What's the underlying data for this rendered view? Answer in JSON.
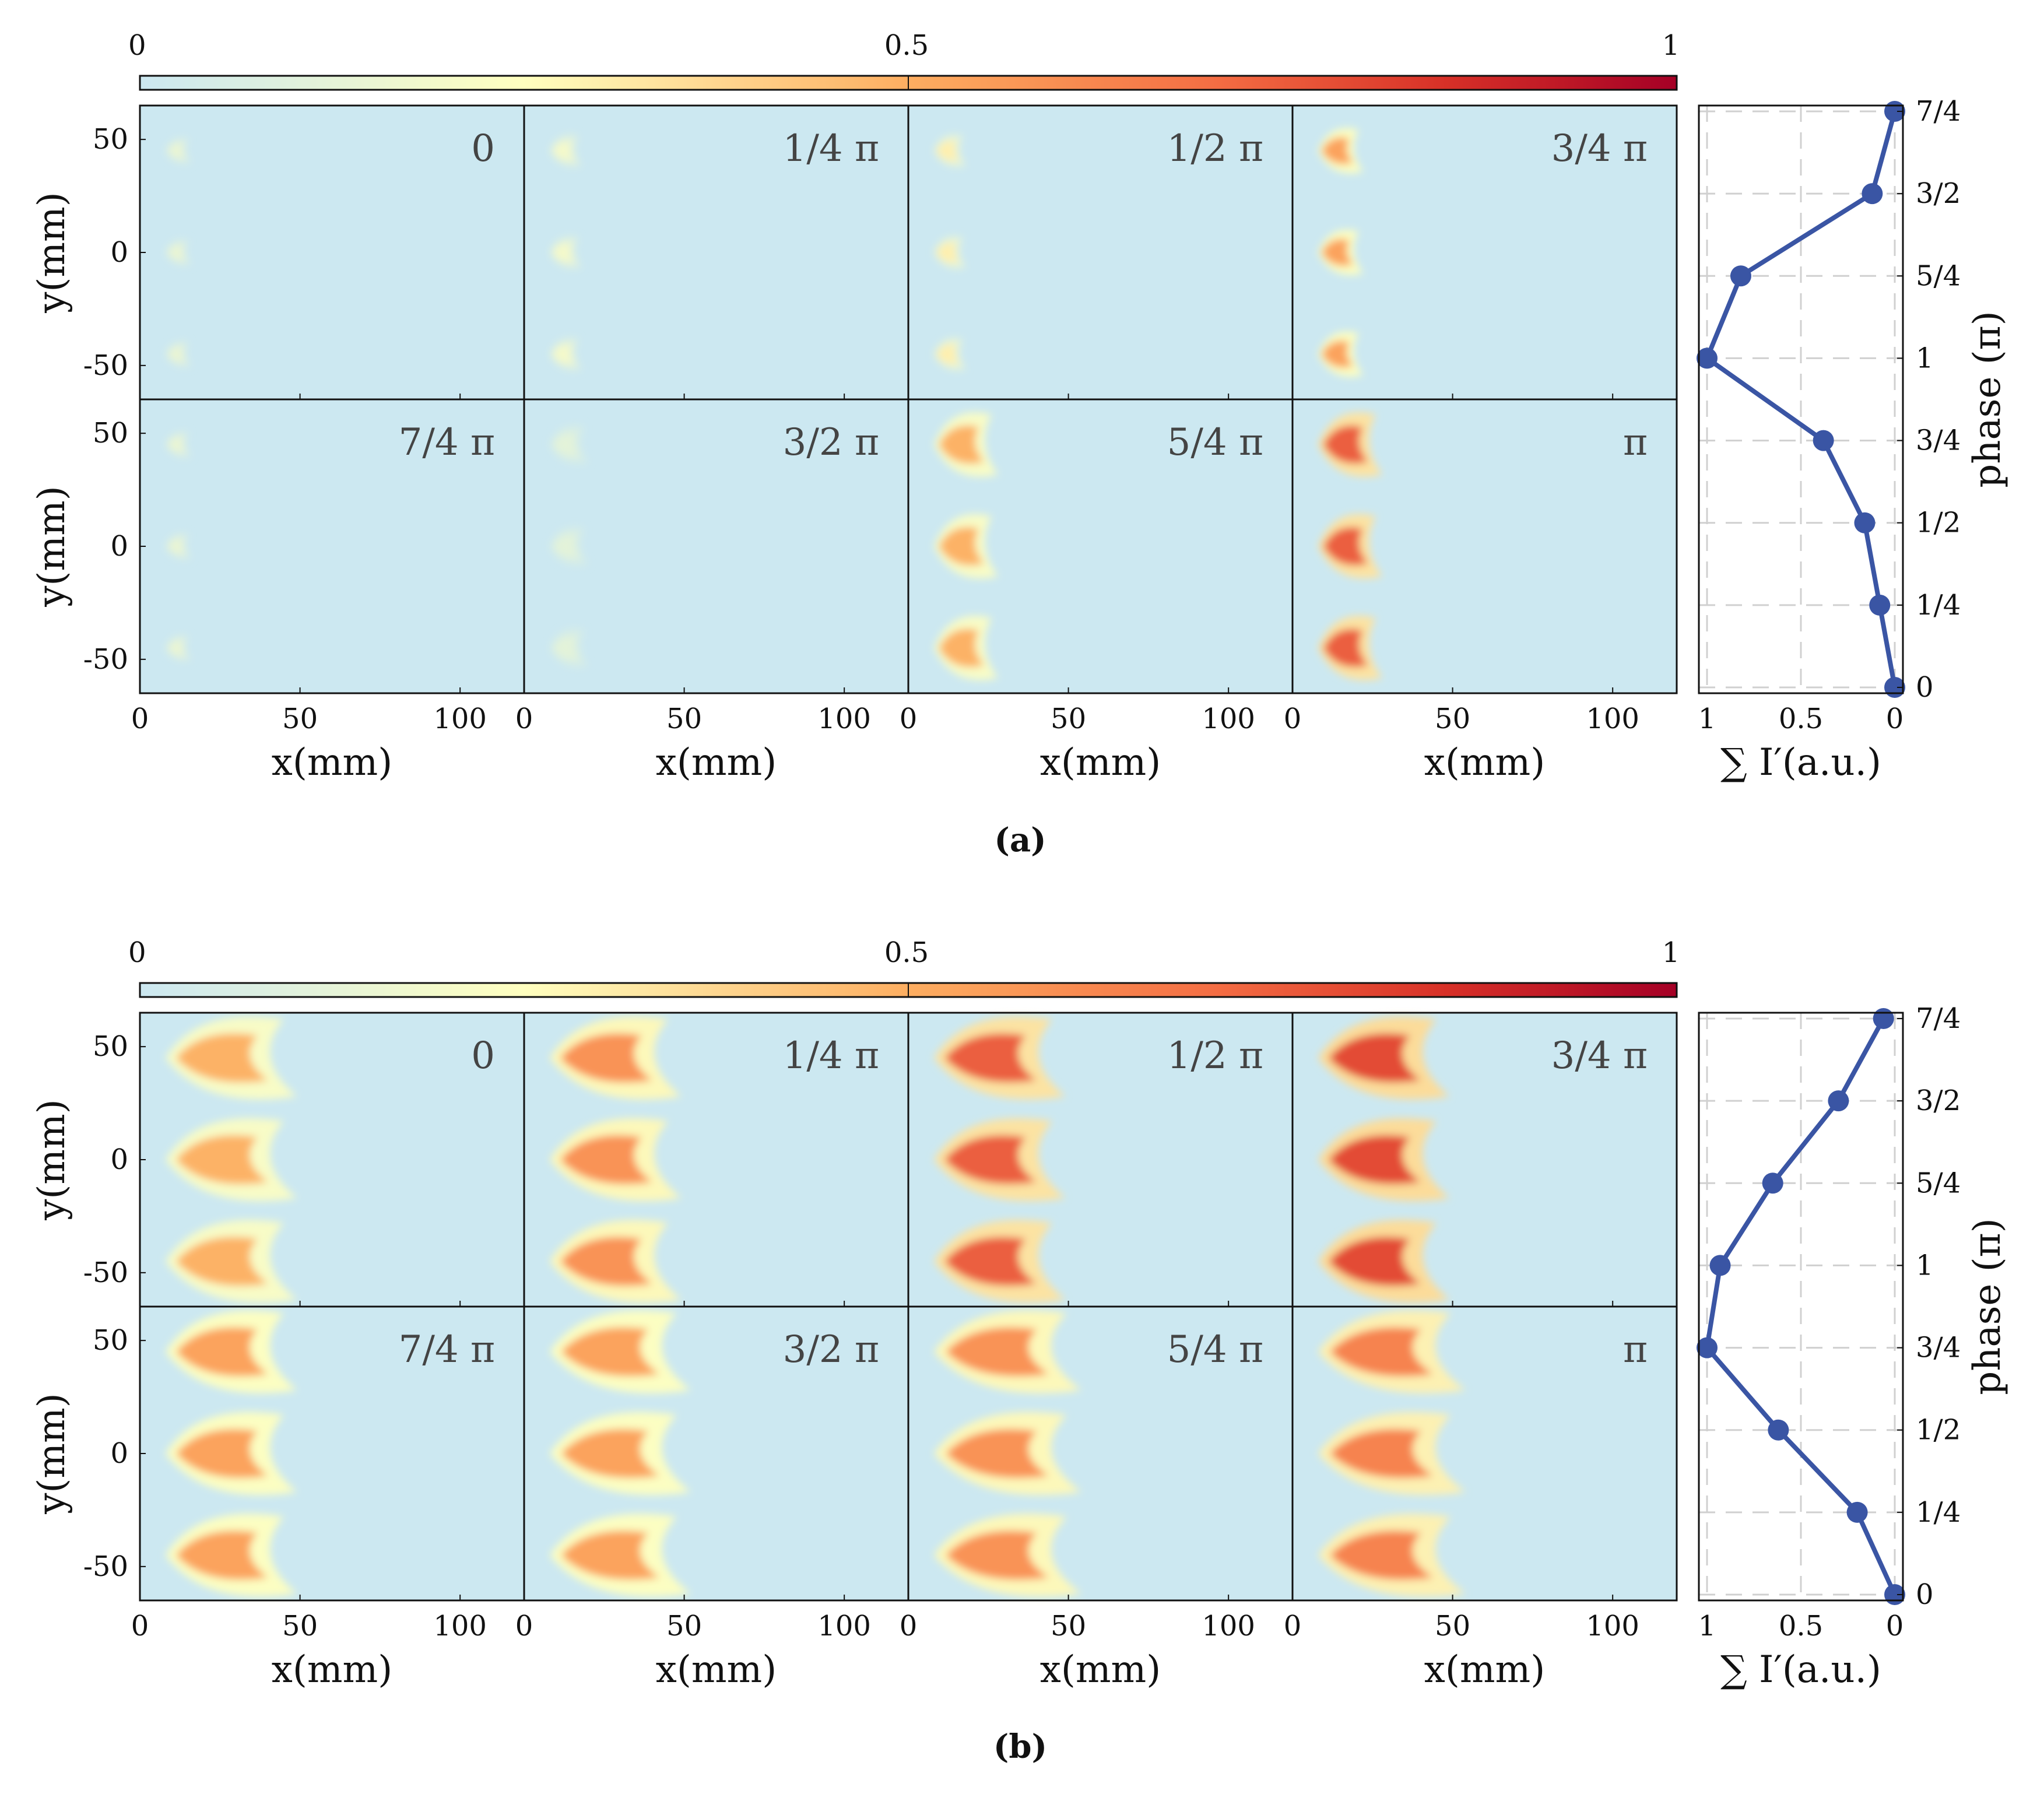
{
  "colors": {
    "bg": "#cce8f1",
    "line": "#3a55a4",
    "grid": "#d0d0d0",
    "cmap": [
      "#cce8f1",
      "#ffffbf",
      "#fdae61",
      "#f46d43",
      "#d73027",
      "#a50026"
    ]
  },
  "colorbar": {
    "ticks": [
      "0",
      "0.5",
      "1"
    ]
  },
  "axis_text": {
    "ylabel": "y(mm)",
    "xlabel": "x(mm)",
    "sum_label": "∑ I′(a.u.)",
    "phase_label": "phase (π)",
    "x_ticks": [
      "0",
      "50",
      "100"
    ],
    "y_ticks": [
      "50",
      "0",
      "-50"
    ],
    "sum_ticks": [
      "1",
      "0.5",
      "0"
    ],
    "phase_ticks": [
      "7/4",
      "3/2",
      "5/4",
      "1",
      "3/4",
      "1/2",
      "1/4",
      "0"
    ]
  },
  "chart_data": [
    {
      "type": "heatmap",
      "caption": "(a)",
      "panel_labels": [
        "0",
        "1/4 π",
        "1/2 π",
        "3/4 π",
        "7/4 π",
        "3/2 π",
        "5/4 π",
        "π"
      ],
      "xlim": [
        0,
        120
      ],
      "ylim": [
        -65,
        65
      ],
      "flame_extent_mm": [
        12,
        14,
        14,
        18,
        12,
        16,
        24,
        24
      ],
      "flame_intensity": [
        0.15,
        0.2,
        0.3,
        0.55,
        0.15,
        0.12,
        0.5,
        0.75
      ],
      "profile": {
        "type": "line",
        "phase": [
          0,
          0.25,
          0.5,
          0.75,
          1,
          1.25,
          1.5,
          1.75
        ],
        "sum_intensity": [
          0.0,
          0.08,
          0.16,
          0.38,
          1.0,
          0.82,
          0.12,
          0.0
        ],
        "xlim": [
          1,
          0
        ]
      }
    },
    {
      "type": "heatmap",
      "caption": "(b)",
      "panel_labels": [
        "0",
        "1/4 π",
        "1/2 π",
        "3/4 π",
        "7/4 π",
        "3/2 π",
        "5/4 π",
        "π"
      ],
      "xlim": [
        0,
        120
      ],
      "ylim": [
        -65,
        65
      ],
      "flame_extent_mm": [
        45,
        45,
        45,
        45,
        45,
        48,
        50,
        50
      ],
      "flame_intensity": [
        0.5,
        0.6,
        0.75,
        0.8,
        0.55,
        0.55,
        0.6,
        0.65
      ],
      "profile": {
        "type": "line",
        "phase": [
          0,
          0.25,
          0.5,
          0.75,
          1,
          1.25,
          1.5,
          1.75
        ],
        "sum_intensity": [
          0.0,
          0.2,
          0.62,
          1.0,
          0.93,
          0.65,
          0.3,
          0.06
        ],
        "xlim": [
          1,
          0
        ]
      }
    }
  ]
}
